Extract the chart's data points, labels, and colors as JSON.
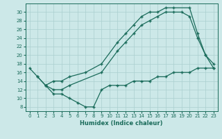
{
  "xlabel": "Humidex (Indice chaleur)",
  "bg_color": "#cce8e8",
  "grid_color": "#aacfcf",
  "line_color": "#1a6b5a",
  "xlim": [
    -0.5,
    23.5
  ],
  "ylim": [
    7,
    32
  ],
  "xticks": [
    0,
    1,
    2,
    3,
    4,
    5,
    6,
    7,
    8,
    9,
    10,
    11,
    12,
    13,
    14,
    15,
    16,
    17,
    18,
    19,
    20,
    21,
    22,
    23
  ],
  "yticks": [
    8,
    10,
    12,
    14,
    16,
    18,
    20,
    22,
    24,
    26,
    28,
    30
  ],
  "line1_x": [
    0,
    1,
    2,
    3,
    4,
    5,
    7,
    9,
    11,
    12,
    13,
    14,
    15,
    16,
    17,
    18,
    20,
    21,
    22,
    23
  ],
  "line1_y": [
    17,
    15,
    13,
    14,
    14,
    15,
    16,
    18,
    23,
    25,
    27,
    29,
    30,
    30,
    31,
    31,
    31,
    25,
    20,
    17
  ],
  "line2_x": [
    1,
    2,
    3,
    4,
    5,
    9,
    11,
    12,
    13,
    14,
    15,
    16,
    17,
    18,
    19,
    20,
    21,
    22,
    23
  ],
  "line2_y": [
    15,
    13,
    12,
    12,
    13,
    16,
    21,
    23,
    25,
    27,
    28,
    29,
    30,
    30,
    30,
    29,
    24,
    20,
    18
  ],
  "line3_x": [
    2,
    3,
    4,
    5,
    6,
    7,
    8,
    9,
    10,
    11,
    12,
    13,
    14,
    15,
    16,
    17,
    18,
    19,
    20,
    21,
    22,
    23
  ],
  "line3_y": [
    13,
    11,
    11,
    10,
    9,
    8,
    8,
    12,
    13,
    13,
    13,
    14,
    14,
    14,
    15,
    15,
    16,
    16,
    16,
    17,
    17,
    17
  ]
}
